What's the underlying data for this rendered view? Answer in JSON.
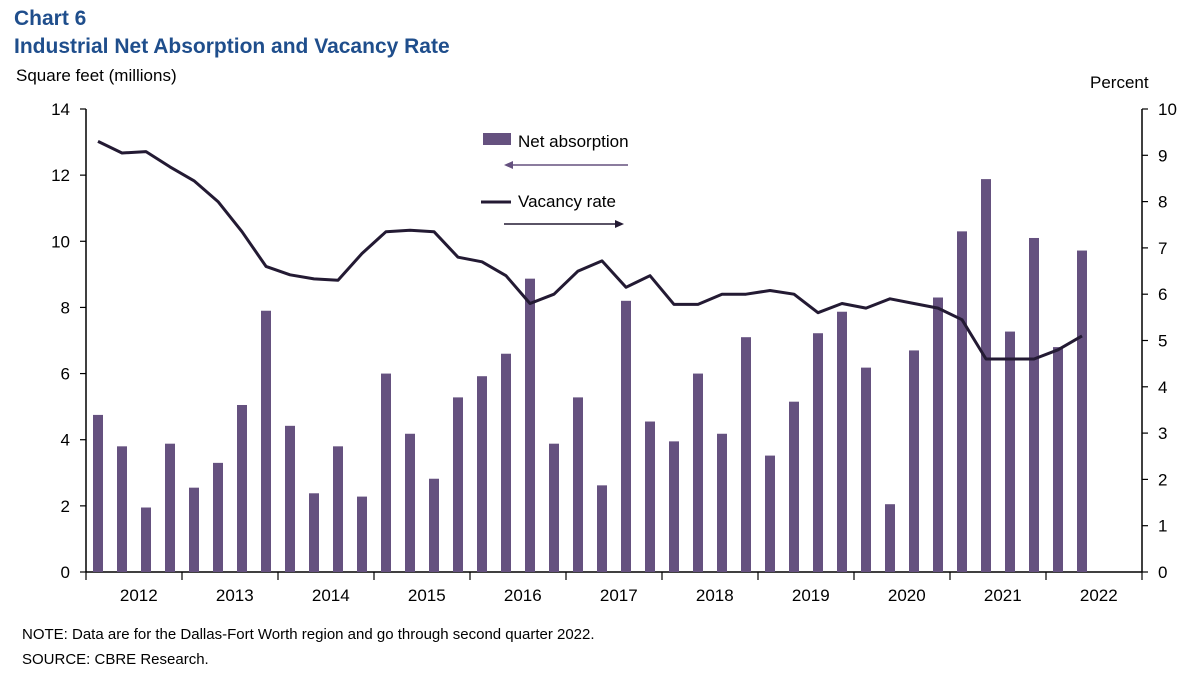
{
  "title_line1": "Chart 6",
  "title_line2": "Industrial Net Absorption and Vacancy Rate",
  "left_axis_label": "Square feet (millions)",
  "right_axis_label": "Percent",
  "note": "NOTE: Data are for the Dallas-Fort Worth region and go through second quarter 2022.",
  "source": "SOURCE: CBRE Research.",
  "colors": {
    "bar": "#65517f",
    "line": "#231a33",
    "axis": "#000000"
  },
  "chart_data": {
    "type": "bar+line",
    "title": "Industrial Net Absorption and Vacancy Rate",
    "x_labels": [
      "2012",
      "2013",
      "2014",
      "2015",
      "2016",
      "2017",
      "2018",
      "2019",
      "2020",
      "2021",
      "2022"
    ],
    "left_axis": {
      "label": "Square feet (millions)",
      "min": 0,
      "max": 14,
      "ticks": [
        0,
        2,
        4,
        6,
        8,
        10,
        12,
        14
      ]
    },
    "right_axis": {
      "label": "Percent",
      "min": 0,
      "max": 10,
      "ticks": [
        0,
        1,
        2,
        3,
        4,
        5,
        6,
        7,
        8,
        9,
        10
      ]
    },
    "legend": {
      "position": "top-center",
      "entries": [
        "Net absorption",
        "Vacancy rate"
      ]
    },
    "series": [
      {
        "name": "Net absorption",
        "type": "bar",
        "axis": "left",
        "values": [
          4.75,
          3.8,
          1.95,
          3.88,
          2.55,
          3.3,
          5.05,
          7.9,
          4.42,
          2.38,
          3.8,
          2.28,
          6.0,
          4.18,
          2.82,
          5.28,
          5.92,
          6.6,
          8.87,
          3.88,
          5.28,
          2.62,
          8.2,
          4.55,
          3.95,
          6.0,
          4.18,
          7.1,
          3.52,
          5.15,
          7.22,
          7.87,
          6.18,
          2.05,
          6.7,
          8.3,
          10.3,
          11.88,
          7.27,
          10.1,
          6.8,
          9.72
        ]
      },
      {
        "name": "Vacancy rate",
        "type": "line",
        "axis": "right",
        "values": [
          9.3,
          9.05,
          9.08,
          8.75,
          8.45,
          8.0,
          7.35,
          6.6,
          6.42,
          6.33,
          6.3,
          6.88,
          7.35,
          7.38,
          7.35,
          6.8,
          6.7,
          6.4,
          5.8,
          6.0,
          6.5,
          6.72,
          6.15,
          6.4,
          5.78,
          5.78,
          6.0,
          6.0,
          6.08,
          6.0,
          5.6,
          5.8,
          5.7,
          5.9,
          5.8,
          5.7,
          5.45,
          4.6,
          4.6,
          4.6,
          4.8,
          5.1
        ]
      }
    ]
  }
}
